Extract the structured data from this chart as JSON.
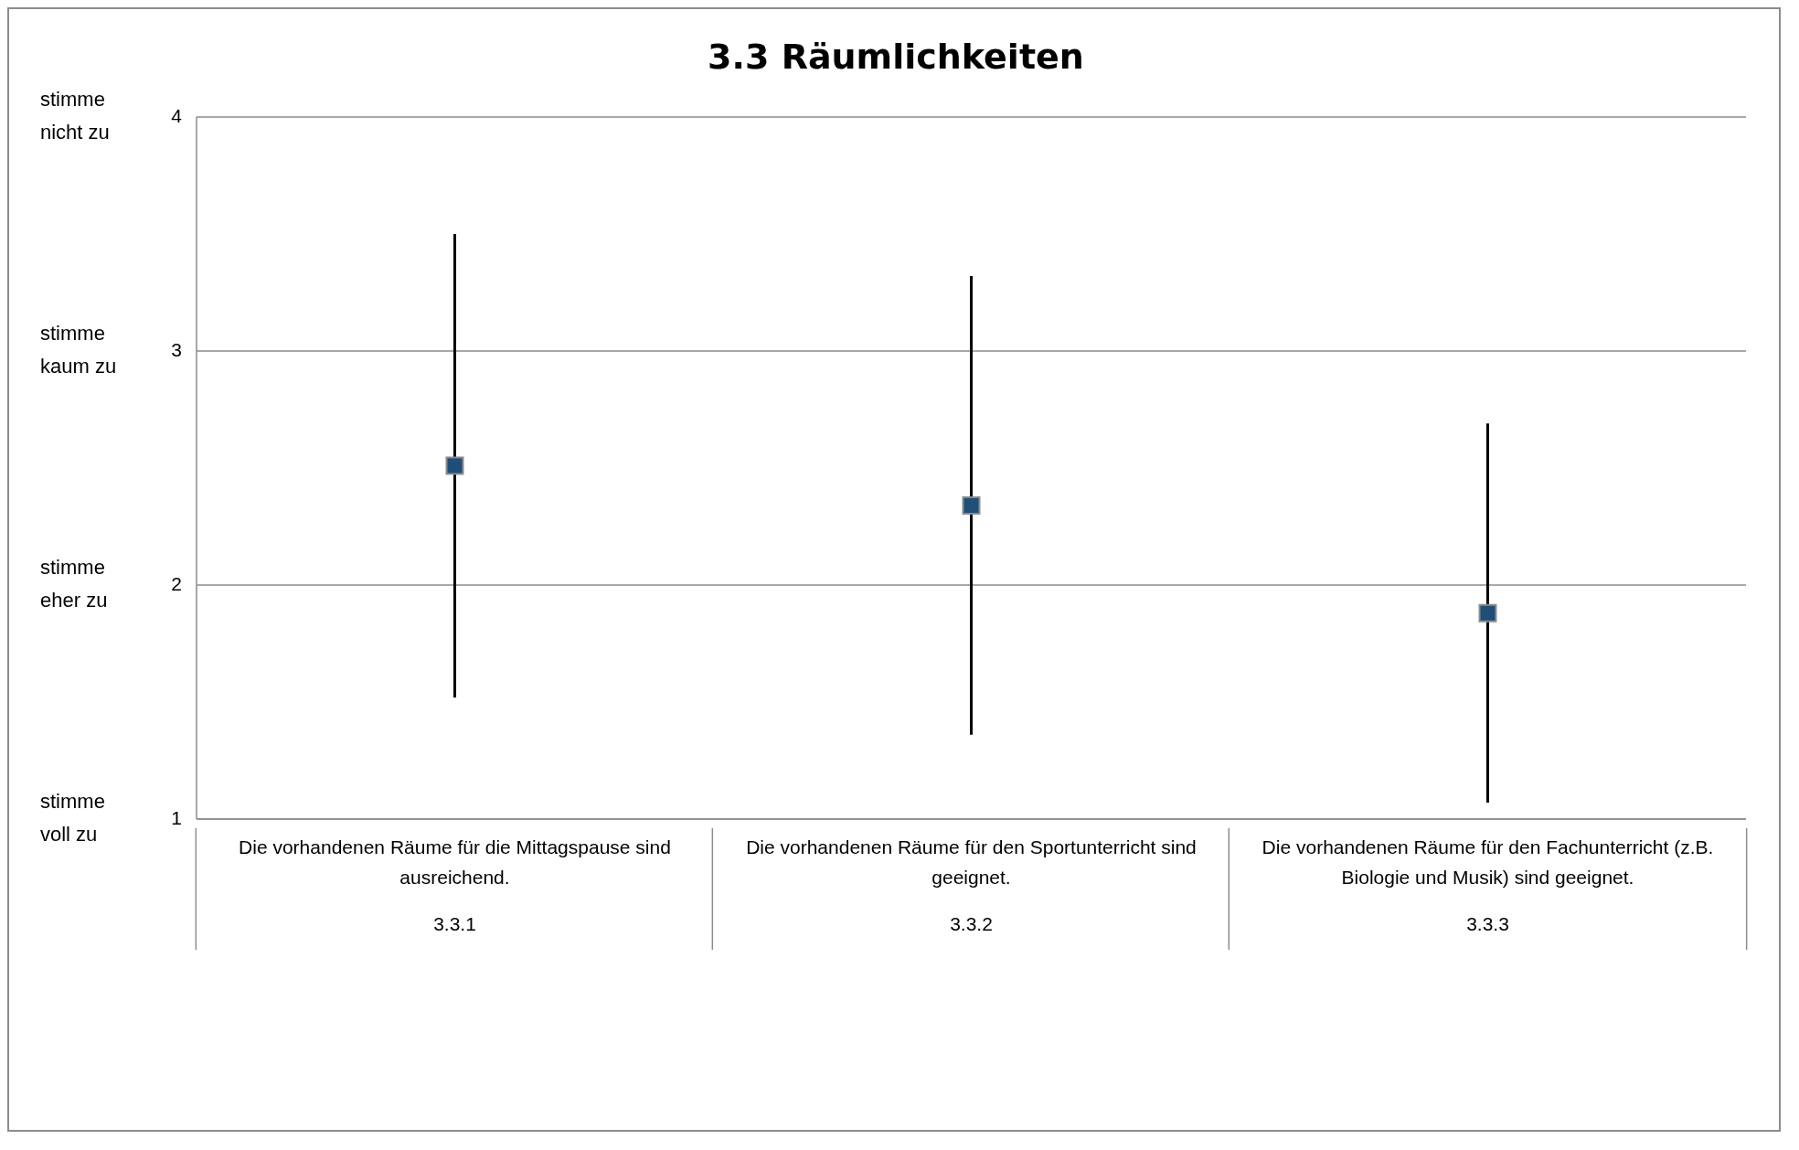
{
  "chart_data": {
    "type": "scatter",
    "title": "3.3 Räumlichkeiten",
    "categories": [
      "Die vorhandenen Räume für die Mittagspause sind ausreichend.",
      "Die vorhandenen Räume für den Sportunterricht sind geeignet.",
      "Die vorhandenen Räume für den Fachunterricht (z.B. Biologie und Musik) sind geeignet."
    ],
    "series": [
      {
        "color": "#1f4e79",
        "values": [
          2.51,
          2.34,
          1.88
        ],
        "errors": [
          0.99,
          0.98,
          0.81
        ]
      }
    ],
    "ylim": [
      1,
      4
    ],
    "yticks": [
      1,
      2,
      3,
      4
    ],
    "grid": "y",
    "marker": "square",
    "annotations": [
      "stimme nicht zu",
      "stimme kaum zu",
      "stimme eher zu",
      "stimme voll zu",
      "3.3.1",
      "3.3.2",
      "3.3.3"
    ]
  }
}
